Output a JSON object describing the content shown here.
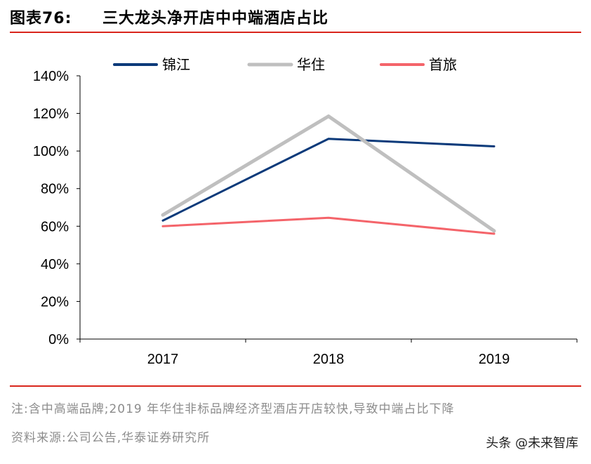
{
  "header": {
    "label": "图表76:",
    "title": "三大龙头净开店中中端酒店占比"
  },
  "chart_data": {
    "type": "line",
    "categories": [
      "2017",
      "2018",
      "2019"
    ],
    "series": [
      {
        "name": "锦江",
        "values": [
          63,
          106.5,
          102.5
        ],
        "color": "#0b3a7a"
      },
      {
        "name": "华住",
        "values": [
          66,
          118.5,
          57.5
        ],
        "color": "#bfbfbf"
      },
      {
        "name": "首旅",
        "values": [
          60,
          64.5,
          56
        ],
        "color": "#f4646a"
      }
    ],
    "y_ticks": [
      "0%",
      "20%",
      "40%",
      "60%",
      "80%",
      "100%",
      "120%",
      "140%"
    ],
    "ylim": [
      0,
      140
    ],
    "legend_position": "top",
    "grid": false
  },
  "footer": {
    "note": "注:含中高端品牌;2019 年华住非标品牌经济型酒店开店较快,导致中端占比下降",
    "source": "资料来源:公司公告,华泰证券研究所"
  },
  "watermark": {
    "text": "头条 @未来智库"
  }
}
